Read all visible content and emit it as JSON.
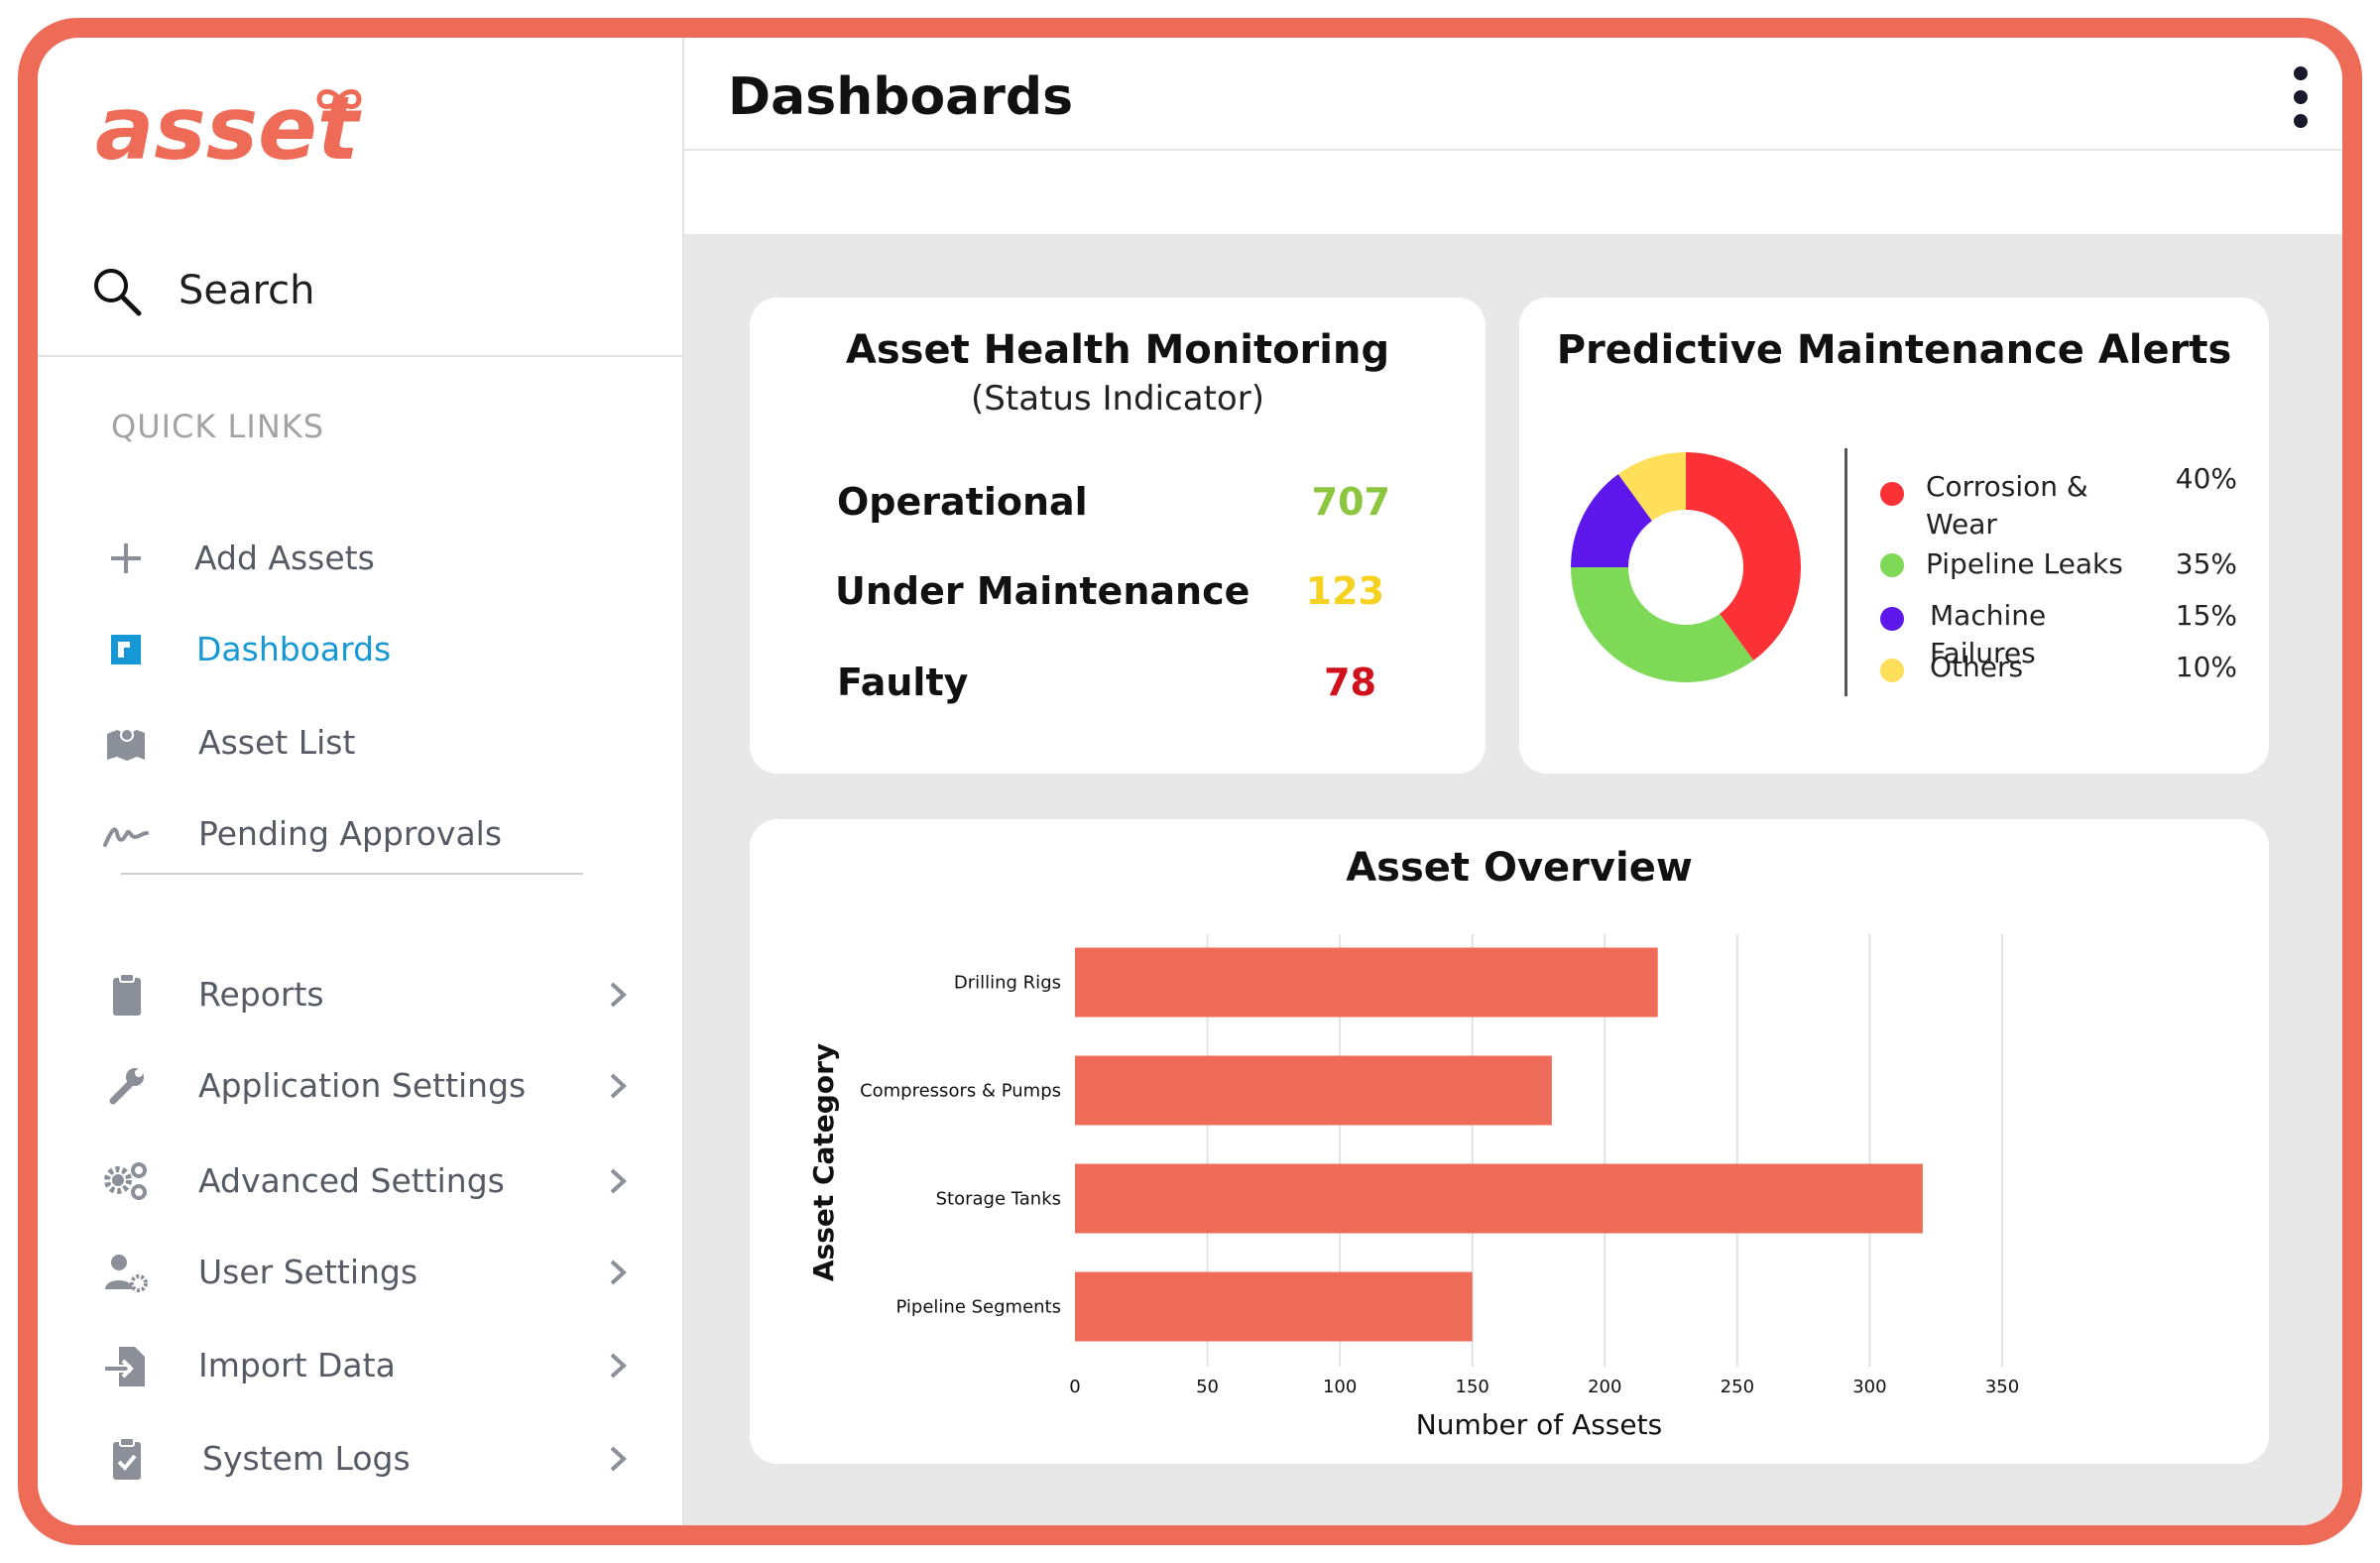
{
  "app": {
    "logo_text": "asset",
    "logo_color": "#ee6c57"
  },
  "sidebar": {
    "search_label": "Search",
    "quick_links_heading": "QUICK LINKS",
    "quick_links": [
      {
        "label": "Add Assets",
        "icon": "plus-icon"
      },
      {
        "label": "Dashboards",
        "icon": "dashboard-icon",
        "active": true
      },
      {
        "label": "Asset List",
        "icon": "map-icon"
      },
      {
        "label": "Pending Approvals",
        "icon": "signature-icon"
      }
    ],
    "settings_items": [
      {
        "label": "Reports",
        "icon": "clipboard-icon"
      },
      {
        "label": "Application Settings",
        "icon": "wrench-icon"
      },
      {
        "label": "Advanced Settings",
        "icon": "gears-icon"
      },
      {
        "label": "User Settings",
        "icon": "user-gear-icon"
      },
      {
        "label": "Import Data",
        "icon": "import-icon"
      },
      {
        "label": "System Logs",
        "icon": "clipboard-check-icon"
      }
    ],
    "active_color": "#1598d5"
  },
  "header": {
    "title": "Dashboards",
    "menu_icon": "kebab-menu-icon"
  },
  "health": {
    "title": "Asset Health Monitoring",
    "subtitle": "(Status Indicator)",
    "rows": [
      {
        "label": "Operational",
        "value": "707",
        "color": "#8cc63f"
      },
      {
        "label": "Under Maintenance",
        "value": "123",
        "color": "#f4d21f"
      },
      {
        "label": "Faulty",
        "value": "78",
        "color": "#d0101a"
      }
    ]
  },
  "alerts": {
    "title": "Predictive Maintenance Alerts",
    "items": [
      {
        "name": "Corrosion & Wear",
        "pct": "40%",
        "value": 40,
        "color": "#fb3135"
      },
      {
        "name": "Pipeline Leaks",
        "pct": "35%",
        "value": 35,
        "color": "#7ed957"
      },
      {
        "name": "Machine Failures",
        "pct": "15%",
        "value": 15,
        "color": "#5e17eb"
      },
      {
        "name": "Others",
        "pct": "10%",
        "value": 10,
        "color": "#ffde59"
      }
    ]
  },
  "chart_data": {
    "type": "bar",
    "orientation": "horizontal",
    "title": "Asset Overview",
    "xlabel": "Number of Assets",
    "ylabel": "Asset Category",
    "categories": [
      "Drilling Rigs",
      "Compressors & Pumps",
      "Storage Tanks",
      "Pipeline Segments"
    ],
    "values": [
      220,
      180,
      320,
      150
    ],
    "xlim": [
      0,
      350
    ],
    "xticks": [
      0,
      50,
      100,
      150,
      200,
      250,
      300,
      350
    ],
    "grid": true,
    "bar_color": "#ee6c57"
  }
}
